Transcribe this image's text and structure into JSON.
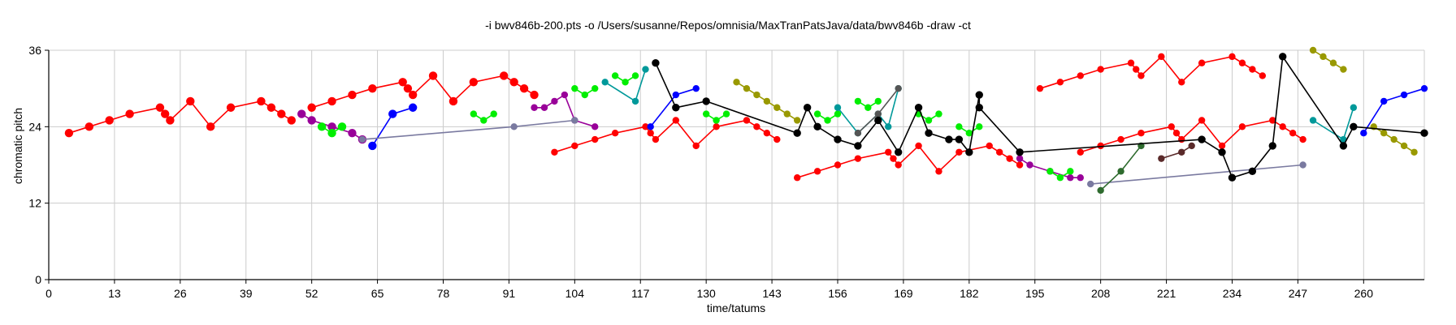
{
  "chart_data": {
    "type": "scatter",
    "title": "-i bwv846b-200.pts -o /Users/susanne/Repos/omnisia/MaxTranPatsJava/data/bwv846b -draw -ct",
    "xlabel": "time/tatums",
    "ylabel": "chromatic pitch",
    "xlim": [
      0,
      272
    ],
    "ylim": [
      0,
      36
    ],
    "xticks": [
      0,
      13,
      26,
      39,
      52,
      65,
      78,
      91,
      104,
      117,
      130,
      143,
      156,
      169,
      182,
      195,
      208,
      221,
      234,
      247,
      260
    ],
    "yticks": [
      0,
      12,
      24,
      36
    ],
    "grid": true,
    "colors": {
      "red": "#ff0000",
      "green": "#00ee00",
      "purple": "#990099",
      "blue": "#0000ff",
      "teal": "#00999a",
      "olive": "#999900",
      "black": "#000000",
      "darkgray": "#555555",
      "slate": "#7a7aa0",
      "darkgreen": "#2e6b2e",
      "brown": "#5a2a2a"
    },
    "series": [
      {
        "color": "red",
        "size": "big",
        "points": [
          [
            4,
            23
          ],
          [
            8,
            24
          ],
          [
            12,
            25
          ],
          [
            16,
            26
          ],
          [
            22,
            27
          ],
          [
            23,
            26
          ],
          [
            24,
            25
          ],
          [
            28,
            28
          ],
          [
            32,
            24
          ],
          [
            36,
            27
          ],
          [
            42,
            28
          ],
          [
            44,
            27
          ],
          [
            46,
            26
          ],
          [
            48,
            25
          ]
        ]
      },
      {
        "color": "red",
        "size": "big",
        "points": [
          [
            52,
            27
          ],
          [
            56,
            28
          ],
          [
            60,
            29
          ],
          [
            64,
            30
          ],
          [
            70,
            31
          ],
          [
            71,
            30
          ],
          [
            72,
            29
          ],
          [
            76,
            32
          ],
          [
            80,
            28
          ],
          [
            84,
            31
          ],
          [
            90,
            32
          ],
          [
            92,
            31
          ],
          [
            94,
            30
          ],
          [
            96,
            29
          ]
        ]
      },
      {
        "color": "red",
        "size": "small",
        "points": [
          [
            100,
            20
          ],
          [
            104,
            21
          ],
          [
            108,
            22
          ],
          [
            112,
            23
          ],
          [
            118,
            24
          ],
          [
            119,
            23
          ],
          [
            120,
            22
          ],
          [
            124,
            25
          ],
          [
            128,
            21
          ],
          [
            132,
            24
          ],
          [
            138,
            25
          ],
          [
            140,
            24
          ],
          [
            142,
            23
          ],
          [
            144,
            22
          ]
        ]
      },
      {
        "color": "red",
        "size": "small",
        "points": [
          [
            148,
            16
          ],
          [
            152,
            17
          ],
          [
            156,
            18
          ],
          [
            160,
            19
          ],
          [
            166,
            20
          ],
          [
            167,
            19
          ],
          [
            168,
            18
          ],
          [
            172,
            21
          ],
          [
            176,
            17
          ],
          [
            180,
            20
          ],
          [
            186,
            21
          ],
          [
            188,
            20
          ],
          [
            190,
            19
          ],
          [
            192,
            18
          ]
        ]
      },
      {
        "color": "red",
        "size": "small",
        "points": [
          [
            196,
            30
          ],
          [
            200,
            31
          ],
          [
            204,
            32
          ],
          [
            208,
            33
          ],
          [
            214,
            34
          ],
          [
            215,
            33
          ],
          [
            216,
            32
          ],
          [
            220,
            35
          ],
          [
            224,
            31
          ],
          [
            228,
            34
          ],
          [
            234,
            35
          ],
          [
            236,
            34
          ],
          [
            238,
            33
          ],
          [
            240,
            32
          ]
        ]
      },
      {
        "color": "red",
        "size": "small",
        "points": [
          [
            204,
            20
          ],
          [
            208,
            21
          ],
          [
            212,
            22
          ],
          [
            216,
            23
          ],
          [
            222,
            24
          ],
          [
            223,
            23
          ],
          [
            224,
            22
          ],
          [
            228,
            25
          ],
          [
            232,
            21
          ],
          [
            236,
            24
          ],
          [
            242,
            25
          ],
          [
            244,
            24
          ],
          [
            246,
            23
          ],
          [
            248,
            22
          ]
        ]
      },
      {
        "color": "purple",
        "size": "big",
        "points": [
          [
            50,
            26
          ],
          [
            52,
            25
          ],
          [
            56,
            24
          ],
          [
            60,
            23
          ],
          [
            62,
            22
          ]
        ]
      },
      {
        "color": "purple",
        "size": "small",
        "points": [
          [
            96,
            27
          ],
          [
            98,
            27
          ],
          [
            100,
            28
          ],
          [
            102,
            29
          ],
          [
            104,
            25
          ],
          [
            108,
            24
          ]
        ]
      },
      {
        "color": "purple",
        "size": "small",
        "points": [
          [
            192,
            19
          ],
          [
            194,
            18
          ],
          [
            198,
            17
          ],
          [
            202,
            16
          ],
          [
            204,
            16
          ]
        ]
      },
      {
        "color": "green",
        "size": "big",
        "points": [
          [
            54,
            24
          ],
          [
            56,
            23
          ],
          [
            58,
            24
          ]
        ]
      },
      {
        "color": "green",
        "size": "small",
        "points": [
          [
            84,
            26
          ],
          [
            86,
            25
          ],
          [
            88,
            26
          ]
        ]
      },
      {
        "color": "green",
        "size": "small",
        "points": [
          [
            104,
            30
          ],
          [
            106,
            29
          ],
          [
            108,
            30
          ]
        ]
      },
      {
        "color": "green",
        "size": "small",
        "points": [
          [
            112,
            32
          ],
          [
            114,
            31
          ],
          [
            116,
            32
          ]
        ]
      },
      {
        "color": "green",
        "size": "small",
        "points": [
          [
            130,
            26
          ],
          [
            132,
            25
          ],
          [
            134,
            26
          ]
        ]
      },
      {
        "color": "green",
        "size": "small",
        "points": [
          [
            152,
            26
          ],
          [
            154,
            25
          ],
          [
            156,
            26
          ]
        ]
      },
      {
        "color": "green",
        "size": "small",
        "points": [
          [
            160,
            28
          ],
          [
            162,
            27
          ],
          [
            164,
            28
          ]
        ]
      },
      {
        "color": "green",
        "size": "small",
        "points": [
          [
            172,
            26
          ],
          [
            174,
            25
          ],
          [
            176,
            26
          ]
        ]
      },
      {
        "color": "green",
        "size": "small",
        "points": [
          [
            180,
            24
          ],
          [
            182,
            23
          ],
          [
            184,
            24
          ]
        ]
      },
      {
        "color": "green",
        "size": "small",
        "points": [
          [
            198,
            17
          ],
          [
            200,
            16
          ],
          [
            202,
            17
          ]
        ]
      },
      {
        "color": "blue",
        "size": "big",
        "points": [
          [
            64,
            21
          ],
          [
            68,
            26
          ],
          [
            72,
            27
          ]
        ]
      },
      {
        "color": "blue",
        "size": "small",
        "points": [
          [
            119,
            24
          ],
          [
            124,
            29
          ],
          [
            128,
            30
          ]
        ]
      },
      {
        "color": "blue",
        "size": "small",
        "points": [
          [
            260,
            23
          ],
          [
            264,
            28
          ],
          [
            268,
            29
          ],
          [
            272,
            30
          ]
        ]
      },
      {
        "color": "teal",
        "size": "small",
        "points": [
          [
            110,
            31
          ],
          [
            116,
            28
          ],
          [
            118,
            33
          ]
        ]
      },
      {
        "color": "teal",
        "size": "small",
        "points": [
          [
            156,
            27
          ],
          [
            160,
            23
          ],
          [
            164,
            26
          ],
          [
            166,
            24
          ],
          [
            168,
            30
          ]
        ]
      },
      {
        "color": "teal",
        "size": "small",
        "points": [
          [
            250,
            25
          ],
          [
            256,
            22
          ],
          [
            258,
            27
          ]
        ]
      },
      {
        "color": "olive",
        "size": "small",
        "points": [
          [
            136,
            31
          ],
          [
            138,
            30
          ],
          [
            140,
            29
          ],
          [
            142,
            28
          ],
          [
            144,
            27
          ],
          [
            146,
            26
          ],
          [
            148,
            25
          ]
        ]
      },
      {
        "color": "olive",
        "size": "small",
        "points": [
          [
            250,
            36
          ],
          [
            252,
            35
          ],
          [
            254,
            34
          ],
          [
            256,
            33
          ]
        ]
      },
      {
        "color": "olive",
        "size": "small",
        "points": [
          [
            262,
            24
          ],
          [
            264,
            23
          ],
          [
            266,
            22
          ],
          [
            268,
            21
          ],
          [
            270,
            20
          ]
        ]
      },
      {
        "color": "slate",
        "size": "small",
        "points": [
          [
            62,
            22
          ],
          [
            92,
            24
          ],
          [
            104,
            25
          ]
        ]
      },
      {
        "color": "slate",
        "size": "small",
        "points": [
          [
            206,
            15
          ],
          [
            248,
            18
          ]
        ]
      },
      {
        "color": "darkgreen",
        "size": "small",
        "points": [
          [
            208,
            14
          ],
          [
            212,
            17
          ],
          [
            216,
            21
          ]
        ]
      },
      {
        "color": "darkgray",
        "size": "small",
        "points": [
          [
            160,
            23
          ],
          [
            164,
            26
          ],
          [
            168,
            30
          ]
        ]
      },
      {
        "color": "brown",
        "size": "small",
        "points": [
          [
            220,
            19
          ],
          [
            224,
            20
          ],
          [
            226,
            21
          ]
        ]
      },
      {
        "color": "black",
        "size": "small",
        "points": [
          [
            120,
            34
          ],
          [
            124,
            27
          ],
          [
            130,
            28
          ],
          [
            148,
            23
          ],
          [
            150,
            27
          ],
          [
            152,
            24
          ],
          [
            156,
            22
          ],
          [
            160,
            21
          ],
          [
            164,
            25
          ],
          [
            168,
            20
          ],
          [
            172,
            27
          ],
          [
            174,
            23
          ],
          [
            178,
            22
          ],
          [
            180,
            22
          ],
          [
            182,
            20
          ],
          [
            184,
            29
          ],
          [
            184,
            27
          ],
          [
            192,
            20
          ],
          [
            228,
            22
          ],
          [
            232,
            20
          ],
          [
            234,
            16
          ],
          [
            238,
            17
          ],
          [
            242,
            21
          ],
          [
            244,
            35
          ],
          [
            256,
            21
          ],
          [
            258,
            24
          ],
          [
            272,
            23
          ]
        ]
      }
    ]
  }
}
